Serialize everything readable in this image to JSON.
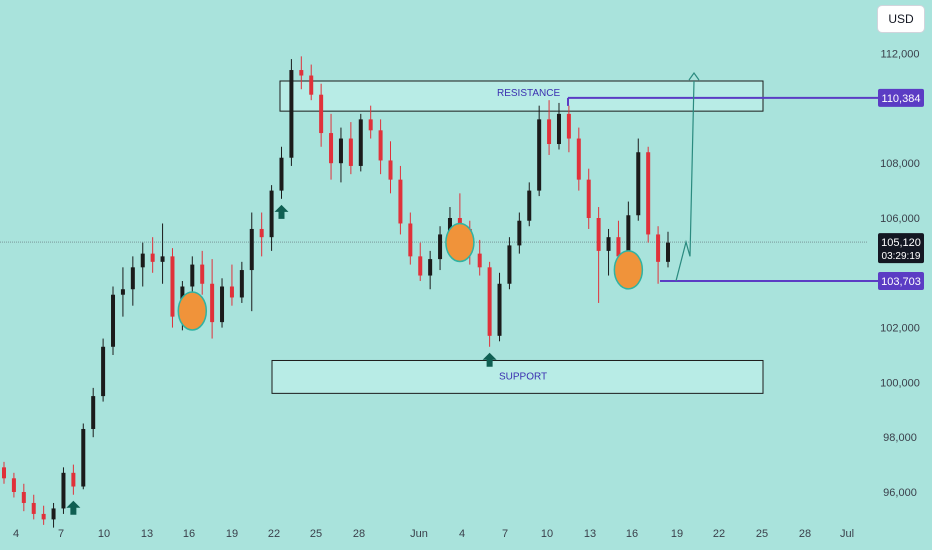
{
  "currency_button": "USD",
  "chart_data": {
    "type": "candlestick",
    "ylim": [
      94800,
      113000
    ],
    "y_ticks": [
      96000,
      98000,
      100000,
      102000,
      104000,
      106000,
      108000,
      110000,
      112000
    ],
    "y_tick_labels": [
      "96,000",
      "98,000",
      "100,000",
      "102,000",
      "",
      "106,000",
      "108,000",
      "",
      "112,000"
    ],
    "x_tick_labels": [
      "4",
      "7",
      "10",
      "13",
      "16",
      "19",
      "22",
      "25",
      "28",
      "Jun",
      "4",
      "7",
      "10",
      "13",
      "16",
      "19",
      "22",
      "25",
      "28",
      "Jul"
    ],
    "current_price": {
      "value": 105120,
      "label": "105,120",
      "countdown": "03:29:19"
    },
    "levels": [
      {
        "name": "resistance-line",
        "value": 110384,
        "label": "110,384",
        "color": "#5b3cc4"
      },
      {
        "name": "support-line",
        "value": 103703,
        "label": "103,703",
        "color": "#5b3cc4"
      }
    ],
    "zones": [
      {
        "name": "resistance-zone",
        "label": "RESISTANCE",
        "from": 109900,
        "to": 111000
      },
      {
        "name": "support-zone",
        "label": "SUPPORT",
        "from": 99600,
        "to": 100800
      }
    ],
    "ohlc": [
      [
        96900,
        97100,
        96300,
        96500
      ],
      [
        96500,
        96700,
        95800,
        96000
      ],
      [
        96000,
        96300,
        95300,
        95600
      ],
      [
        95600,
        95900,
        95000,
        95200
      ],
      [
        95200,
        95500,
        94800,
        95000
      ],
      [
        95000,
        95600,
        94700,
        95400
      ],
      [
        95400,
        96900,
        95200,
        96700
      ],
      [
        96700,
        97000,
        95900,
        96200
      ],
      [
        96200,
        98500,
        96100,
        98300
      ],
      [
        98300,
        99800,
        98000,
        99500
      ],
      [
        99500,
        101600,
        99300,
        101300
      ],
      [
        101300,
        103500,
        101000,
        103200
      ],
      [
        103200,
        104200,
        102400,
        103400
      ],
      [
        103400,
        104600,
        102800,
        104200
      ],
      [
        104200,
        105100,
        103500,
        104700
      ],
      [
        104700,
        105300,
        104000,
        104400
      ],
      [
        104400,
        105800,
        103600,
        104600
      ],
      [
        104600,
        104900,
        102000,
        102400
      ],
      [
        102400,
        103700,
        101900,
        103500
      ],
      [
        103500,
        104600,
        102900,
        104300
      ],
      [
        104300,
        104800,
        103200,
        103600
      ],
      [
        103600,
        104500,
        101600,
        102200
      ],
      [
        102200,
        103800,
        102000,
        103500
      ],
      [
        103500,
        104300,
        102800,
        103100
      ],
      [
        103100,
        104400,
        102900,
        104100
      ],
      [
        104100,
        106200,
        102600,
        105600
      ],
      [
        105600,
        106200,
        104600,
        105300
      ],
      [
        105300,
        107200,
        104800,
        107000
      ],
      [
        107000,
        108600,
        106700,
        108200
      ],
      [
        108200,
        111800,
        107900,
        111400
      ],
      [
        111400,
        111900,
        110700,
        111200
      ],
      [
        111200,
        111600,
        110300,
        110500
      ],
      [
        110500,
        110900,
        108600,
        109100
      ],
      [
        109100,
        109800,
        107400,
        108000
      ],
      [
        108000,
        109300,
        107300,
        108900
      ],
      [
        108900,
        109500,
        107600,
        107900
      ],
      [
        107900,
        109800,
        107700,
        109600
      ],
      [
        109600,
        110100,
        108900,
        109200
      ],
      [
        109200,
        109600,
        107600,
        108100
      ],
      [
        108100,
        108800,
        106900,
        107400
      ],
      [
        107400,
        107900,
        105400,
        105800
      ],
      [
        105800,
        106200,
        104300,
        104600
      ],
      [
        104600,
        105100,
        103700,
        103900
      ],
      [
        103900,
        104800,
        103400,
        104500
      ],
      [
        104500,
        105700,
        104100,
        105400
      ],
      [
        105400,
        106400,
        104900,
        106000
      ],
      [
        106000,
        106900,
        105400,
        105600
      ],
      [
        105600,
        105900,
        104300,
        104700
      ],
      [
        104700,
        105200,
        103900,
        104200
      ],
      [
        104200,
        104400,
        101300,
        101700
      ],
      [
        101700,
        104000,
        101500,
        103600
      ],
      [
        103600,
        105300,
        103400,
        105000
      ],
      [
        105000,
        106200,
        104700,
        105900
      ],
      [
        105900,
        107300,
        105700,
        107000
      ],
      [
        107000,
        110100,
        106800,
        109600
      ],
      [
        109600,
        110300,
        108300,
        108700
      ],
      [
        108700,
        110200,
        108500,
        109800
      ],
      [
        109800,
        110100,
        108400,
        108900
      ],
      [
        108900,
        109300,
        107000,
        107400
      ],
      [
        107400,
        107800,
        105600,
        106000
      ],
      [
        106000,
        106400,
        102900,
        104800
      ],
      [
        104800,
        105600,
        103900,
        105300
      ],
      [
        105300,
        105900,
        104300,
        104600
      ],
      [
        104600,
        106600,
        104400,
        106100
      ],
      [
        106100,
        108900,
        105900,
        108400
      ],
      [
        108400,
        108600,
        105100,
        105400
      ],
      [
        105400,
        105700,
        103600,
        104400
      ],
      [
        104400,
        105500,
        104200,
        105100
      ]
    ],
    "projection": [
      [
        104700,
        103703
      ],
      [
        105120,
        105120
      ],
      [
        104500,
        104500
      ],
      [
        105400,
        105400
      ],
      [
        111000,
        111000
      ]
    ],
    "markers": {
      "circles": [
        19,
        46,
        63
      ],
      "up_arrows": [
        7,
        28,
        49
      ]
    }
  }
}
